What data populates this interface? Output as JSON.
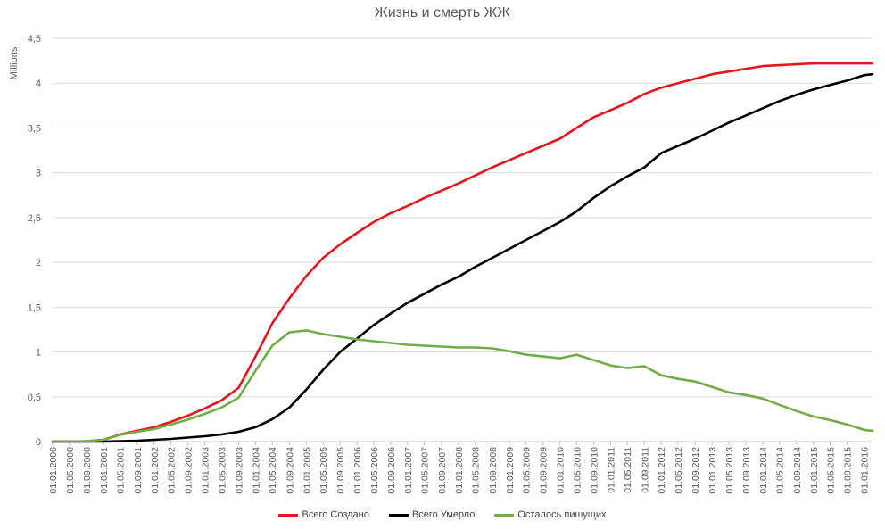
{
  "chart_data": {
    "type": "line",
    "title": "Жизнь и смерть ЖЖ",
    "xlabel": "",
    "ylabel": "Millions",
    "ylim": [
      0,
      4.5
    ],
    "y_ticks": [
      "0",
      "0,5",
      "1",
      "1,5",
      "2",
      "2,5",
      "3",
      "3,5",
      "4",
      "4,5"
    ],
    "x_ticks": [
      "01.01.2000",
      "01.05.2000",
      "01.09.2000",
      "01.01.2001",
      "01.05.2001",
      "01.09.2001",
      "01.01.2002",
      "01.05.2002",
      "01.09.2002",
      "01.01.2003",
      "01.05.2003",
      "01.09.2003",
      "01.01.2004",
      "01.05.2004",
      "01.09.2004",
      "01.01.2005",
      "01.05.2005",
      "01.09.2005",
      "01.01.2006",
      "01.05.2006",
      "01.09.2006",
      "01.01.2007",
      "01.05.2007",
      "01.09.2007",
      "01.01.2008",
      "01.05.2008",
      "01.09.2008",
      "01.01.2009",
      "01.05.2009",
      "01.09.2009",
      "01.01.2010",
      "01.05.2010",
      "01.09.2010",
      "01.01.2011",
      "01.05.2011",
      "01.09.2011",
      "01.01.2012",
      "01.05.2012",
      "01.09.2012",
      "01.01.2013",
      "01.05.2013",
      "01.09.2013",
      "01.01.2014",
      "01.05.2014",
      "01.09.2014",
      "01.01.2015",
      "01.05.2015",
      "01.09.2015",
      "01.01.2016"
    ],
    "x": [
      "01.01.2000",
      "01.05.2000",
      "01.09.2000",
      "01.01.2001",
      "01.05.2001",
      "01.09.2001",
      "01.01.2002",
      "01.05.2002",
      "01.09.2002",
      "01.01.2003",
      "01.05.2003",
      "01.09.2003",
      "01.01.2004",
      "01.05.2004",
      "01.09.2004",
      "01.01.2005",
      "01.05.2005",
      "01.09.2005",
      "01.01.2006",
      "01.05.2006",
      "01.09.2006",
      "01.01.2007",
      "01.05.2007",
      "01.09.2007",
      "01.01.2008",
      "01.05.2008",
      "01.09.2008",
      "01.01.2009",
      "01.05.2009",
      "01.09.2009",
      "01.01.2010",
      "01.05.2010",
      "01.09.2010",
      "01.01.2011",
      "01.05.2011",
      "01.09.2011",
      "01.01.2012",
      "01.05.2012",
      "01.09.2012",
      "01.01.2013",
      "01.05.2013",
      "01.09.2013",
      "01.01.2014",
      "01.05.2014",
      "01.09.2014",
      "01.01.2015",
      "01.05.2015",
      "01.09.2015",
      "01.01.2016",
      "01.03.2016"
    ],
    "series": [
      {
        "name": "Всего Создано",
        "color": "#E3161B",
        "values": [
          0,
          0,
          0.005,
          0.02,
          0.08,
          0.12,
          0.16,
          0.22,
          0.29,
          0.37,
          0.46,
          0.6,
          0.95,
          1.32,
          1.6,
          1.85,
          2.05,
          2.2,
          2.33,
          2.45,
          2.55,
          2.63,
          2.72,
          2.8,
          2.88,
          2.97,
          3.06,
          3.14,
          3.22,
          3.3,
          3.38,
          3.5,
          3.62,
          3.7,
          3.78,
          3.88,
          3.95,
          4.0,
          4.05,
          4.1,
          4.13,
          4.16,
          4.19,
          4.2,
          4.21,
          4.22,
          4.22,
          4.22,
          4.22,
          4.22
        ]
      },
      {
        "name": "Всего Умерло",
        "color": "#000000",
        "values": [
          0,
          0,
          0,
          0,
          0.005,
          0.01,
          0.02,
          0.03,
          0.045,
          0.06,
          0.08,
          0.11,
          0.16,
          0.25,
          0.38,
          0.58,
          0.8,
          1.0,
          1.15,
          1.3,
          1.43,
          1.55,
          1.65,
          1.75,
          1.84,
          1.95,
          2.05,
          2.15,
          2.25,
          2.35,
          2.45,
          2.57,
          2.72,
          2.85,
          2.96,
          3.06,
          3.22,
          3.3,
          3.38,
          3.47,
          3.56,
          3.64,
          3.72,
          3.8,
          3.87,
          3.93,
          3.98,
          4.03,
          4.09,
          4.1
        ]
      },
      {
        "name": "Осталось пишущих",
        "color": "#70AD47",
        "values": [
          0,
          0,
          0.005,
          0.02,
          0.075,
          0.11,
          0.14,
          0.19,
          0.245,
          0.31,
          0.38,
          0.49,
          0.79,
          1.07,
          1.22,
          1.24,
          1.2,
          1.17,
          1.14,
          1.12,
          1.1,
          1.08,
          1.07,
          1.06,
          1.05,
          1.05,
          1.04,
          1.01,
          0.97,
          0.95,
          0.93,
          0.97,
          0.91,
          0.85,
          0.82,
          0.84,
          0.74,
          0.7,
          0.67,
          0.61,
          0.55,
          0.52,
          0.48,
          0.41,
          0.34,
          0.28,
          0.24,
          0.19,
          0.13,
          0.12
        ]
      }
    ],
    "grid": true,
    "legend": "bottom"
  }
}
